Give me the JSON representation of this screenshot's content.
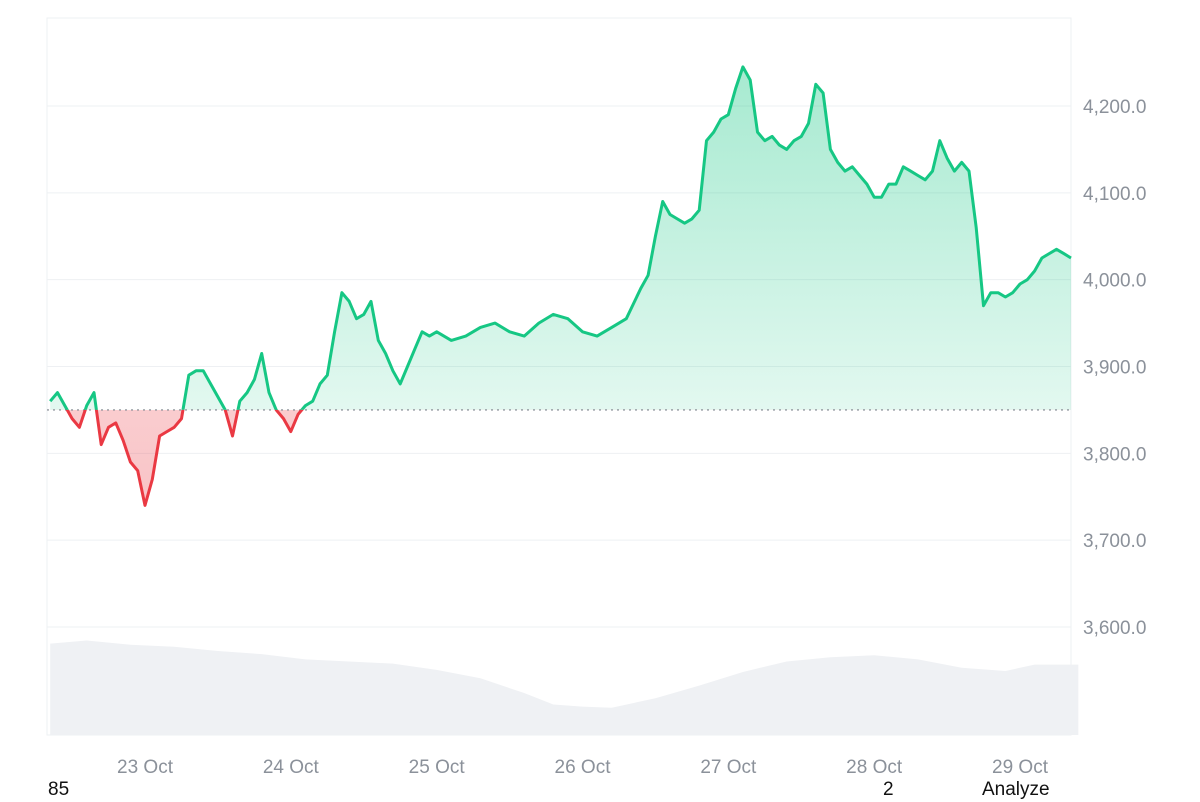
{
  "chart_data": {
    "type": "line",
    "baseline": 3850,
    "ylim": [
      3500,
      4300
    ],
    "yticks": [
      3600,
      3700,
      3800,
      3900,
      4000,
      4100,
      4200
    ],
    "ytick_labels": [
      "3,600.0",
      "3,700.0",
      "3,800.0",
      "3,900.0",
      "4,000.0",
      "4,100.0",
      "4,200.0"
    ],
    "xlim": [
      22.35,
      29.4
    ],
    "xticks": [
      23,
      24,
      25,
      26,
      27,
      28,
      29
    ],
    "xtick_labels": [
      "23 Oct",
      "24 Oct",
      "25 Oct",
      "26 Oct",
      "27 Oct",
      "28 Oct",
      "29 Oct"
    ],
    "series": [
      {
        "values_x": [
          22.35,
          22.4,
          22.45,
          22.5,
          22.55,
          22.6,
          22.65,
          22.7,
          22.75,
          22.8,
          22.85,
          22.9,
          22.95,
          23.0,
          23.05,
          23.1,
          23.15,
          23.2,
          23.25,
          23.3,
          23.35,
          23.4,
          23.45,
          23.5,
          23.55,
          23.6,
          23.65,
          23.7,
          23.75,
          23.8,
          23.85,
          23.9,
          23.95,
          24.0,
          24.05,
          24.1,
          24.15,
          24.2,
          24.25,
          24.3,
          24.35,
          24.4,
          24.45,
          24.5,
          24.55,
          24.6,
          24.65,
          24.7,
          24.75,
          24.8,
          24.85,
          24.9,
          24.95,
          25.0,
          25.1,
          25.2,
          25.3,
          25.4,
          25.5,
          25.6,
          25.7,
          25.8,
          25.9,
          26.0,
          26.1,
          26.2,
          26.3,
          26.4,
          26.45,
          26.5,
          26.55,
          26.6,
          26.65,
          26.7,
          26.75,
          26.8,
          26.85,
          26.9,
          26.95,
          27.0,
          27.05,
          27.1,
          27.15,
          27.2,
          27.25,
          27.3,
          27.35,
          27.4,
          27.45,
          27.5,
          27.55,
          27.6,
          27.65,
          27.7,
          27.75,
          27.8,
          27.85,
          27.9,
          27.95,
          28.0,
          28.05,
          28.1,
          28.15,
          28.2,
          28.25,
          28.3,
          28.35,
          28.4,
          28.45,
          28.5,
          28.55,
          28.6,
          28.65,
          28.7,
          28.75,
          28.8,
          28.85,
          28.9,
          28.95,
          29.0,
          29.05,
          29.1,
          29.15,
          29.2,
          29.25,
          29.3,
          29.35
        ],
        "values_y": [
          3860,
          3870,
          3855,
          3840,
          3830,
          3855,
          3870,
          3810,
          3830,
          3835,
          3815,
          3790,
          3780,
          3740,
          3770,
          3820,
          3825,
          3830,
          3840,
          3890,
          3895,
          3895,
          3880,
          3865,
          3850,
          3820,
          3860,
          3870,
          3885,
          3915,
          3870,
          3850,
          3840,
          3825,
          3845,
          3855,
          3860,
          3880,
          3890,
          3940,
          3985,
          3975,
          3955,
          3960,
          3975,
          3930,
          3915,
          3895,
          3880,
          3900,
          3920,
          3940,
          3935,
          3940,
          3930,
          3935,
          3945,
          3950,
          3940,
          3935,
          3950,
          3960,
          3955,
          3940,
          3935,
          3945,
          3955,
          3990,
          4005,
          4050,
          4090,
          4075,
          4070,
          4065,
          4070,
          4080,
          4160,
          4170,
          4185,
          4190,
          4220,
          4245,
          4230,
          4170,
          4160,
          4165,
          4155,
          4150,
          4160,
          4165,
          4180,
          4225,
          4215,
          4150,
          4135,
          4125,
          4130,
          4120,
          4110,
          4095,
          4095,
          4110,
          4110,
          4130,
          4125,
          4120,
          4115,
          4125,
          4160,
          4140,
          4125,
          4135,
          4125,
          4060,
          3970,
          3985,
          3985,
          3980,
          3985,
          3995,
          4000,
          4010,
          4025,
          4030,
          4035,
          4030,
          4025
        ]
      }
    ],
    "volume": {
      "x": [
        22.35,
        22.6,
        22.9,
        23.2,
        23.5,
        23.8,
        24.1,
        24.4,
        24.7,
        25.0,
        25.3,
        25.6,
        25.8,
        26.0,
        26.2,
        26.5,
        26.8,
        27.1,
        27.4,
        27.7,
        28.0,
        28.3,
        28.6,
        28.9,
        29.1,
        29.4
      ],
      "y": [
        0.87,
        0.9,
        0.86,
        0.84,
        0.8,
        0.77,
        0.72,
        0.7,
        0.68,
        0.62,
        0.54,
        0.4,
        0.29,
        0.27,
        0.26,
        0.35,
        0.47,
        0.6,
        0.7,
        0.74,
        0.76,
        0.72,
        0.64,
        0.61,
        0.67,
        0.67
      ]
    }
  },
  "footer": {
    "left_text": "85",
    "middle_text": "2",
    "right_text": "Analyze"
  },
  "colors": {
    "up": "#16c784",
    "down": "#ea3943",
    "grid": "#eef0f3",
    "volume": "#eff1f4"
  }
}
